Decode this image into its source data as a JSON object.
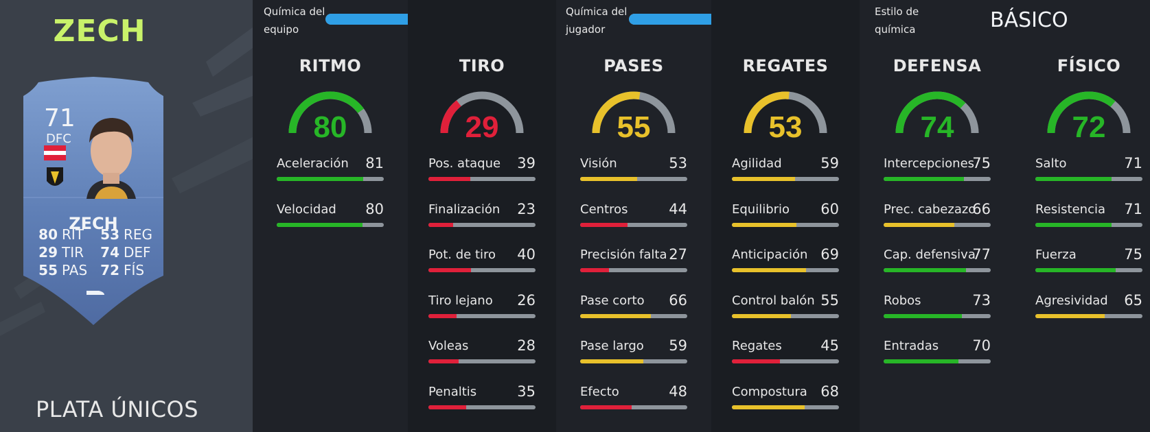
{
  "player": {
    "title": "ZECH",
    "card": {
      "rating": "71",
      "position": "DFC",
      "name": "ZECH",
      "stats": [
        {
          "value": "80",
          "label": "RIT"
        },
        {
          "value": "53",
          "label": "REG"
        },
        {
          "value": "29",
          "label": "TIR"
        },
        {
          "value": "74",
          "label": "DEF"
        },
        {
          "value": "55",
          "label": "PAS"
        },
        {
          "value": "72",
          "label": "FÍS"
        }
      ]
    },
    "rarity": "PLATA ÚNICOS"
  },
  "chemistry": {
    "team": {
      "label_line1": "Química del",
      "label_line2": "equipo",
      "value": "53",
      "fraction": 0.53
    },
    "player": {
      "label_line1": "Química del",
      "label_line2": "jugador",
      "value": "5",
      "fraction": 0.5
    },
    "style": {
      "label_line1": "Estilo de",
      "label_line2": "química",
      "value": "BÁSICO"
    }
  },
  "colors": {
    "green": "#27b627",
    "yellow": "#e8c12b",
    "red": "#e0203a",
    "track": "#8e959c",
    "blue": "#2f9fe6"
  },
  "categories": [
    {
      "title": "RITMO",
      "value": "80",
      "attrs": [
        {
          "name": "Aceleración",
          "value": "81"
        },
        {
          "name": "Velocidad",
          "value": "80"
        }
      ]
    },
    {
      "title": "TIRO",
      "value": "29",
      "attrs": [
        {
          "name": "Pos. ataque",
          "value": "39"
        },
        {
          "name": "Finalización",
          "value": "23"
        },
        {
          "name": "Pot. de tiro",
          "value": "40"
        },
        {
          "name": "Tiro lejano",
          "value": "26"
        },
        {
          "name": "Voleas",
          "value": "28"
        },
        {
          "name": "Penaltis",
          "value": "35"
        }
      ]
    },
    {
      "title": "PASES",
      "value": "55",
      "attrs": [
        {
          "name": "Visión",
          "value": "53"
        },
        {
          "name": "Centros",
          "value": "44"
        },
        {
          "name": "Precisión falta",
          "value": "27"
        },
        {
          "name": "Pase corto",
          "value": "66"
        },
        {
          "name": "Pase largo",
          "value": "59"
        },
        {
          "name": "Efecto",
          "value": "48"
        }
      ]
    },
    {
      "title": "REGATES",
      "value": "53",
      "attrs": [
        {
          "name": "Agilidad",
          "value": "59"
        },
        {
          "name": "Equilibrio",
          "value": "60"
        },
        {
          "name": "Anticipación",
          "value": "69"
        },
        {
          "name": "Control balón",
          "value": "55"
        },
        {
          "name": "Regates",
          "value": "45"
        },
        {
          "name": "Compostura",
          "value": "68"
        }
      ]
    },
    {
      "title": "DEFENSA",
      "value": "74",
      "attrs": [
        {
          "name": "Intercepciones",
          "value": "75"
        },
        {
          "name": "Prec. cabezazo",
          "value": "66"
        },
        {
          "name": "Cap. defensiva",
          "value": "77"
        },
        {
          "name": "Robos",
          "value": "73"
        },
        {
          "name": "Entradas",
          "value": "70"
        }
      ]
    },
    {
      "title": "FÍSICO",
      "value": "72",
      "attrs": [
        {
          "name": "Salto",
          "value": "71"
        },
        {
          "name": "Resistencia",
          "value": "71"
        },
        {
          "name": "Fuerza",
          "value": "75"
        },
        {
          "name": "Agresividad",
          "value": "65"
        }
      ]
    }
  ]
}
